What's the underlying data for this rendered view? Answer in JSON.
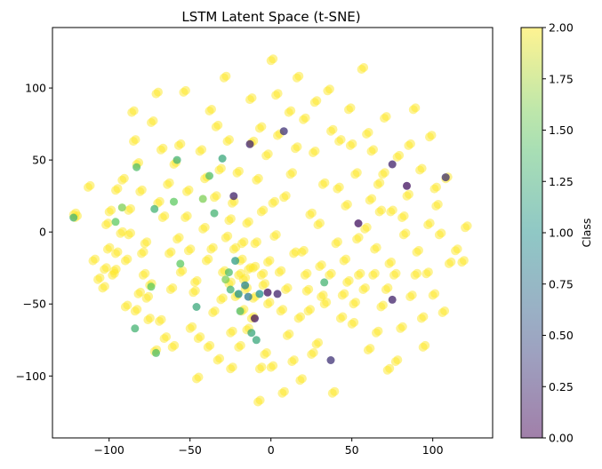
{
  "chart_data": {
    "type": "scatter",
    "title": "LSTM Latent Space (t-SNE)",
    "xlabel": "",
    "ylabel": "",
    "xlim": [
      -135,
      137
    ],
    "ylim": [
      -143,
      142
    ],
    "xticks": [
      -100,
      -50,
      0,
      50,
      100
    ],
    "yticks": [
      -100,
      -50,
      0,
      50,
      100
    ],
    "grid": false,
    "marker_alpha": 0.5,
    "colormap": "viridis",
    "colorbar": {
      "label": "Class",
      "range": [
        0,
        2
      ],
      "ticks": [
        "0.00",
        "0.25",
        "0.50",
        "0.75",
        "1.00",
        "1.25",
        "1.50",
        "1.75",
        "2.00"
      ],
      "stops": [
        "#440154",
        "#3b528b",
        "#21918c",
        "#5ec962",
        "#fde725"
      ]
    },
    "points_class_2": [
      [
        -122,
        12
      ],
      [
        -121,
        10
      ],
      [
        -113,
        31
      ],
      [
        -102,
        5
      ],
      [
        -101,
        -12
      ],
      [
        -100,
        14
      ],
      [
        -98,
        -30
      ],
      [
        -97,
        -27
      ],
      [
        -96,
        -15
      ],
      [
        -93,
        -1
      ],
      [
        -90,
        -20
      ],
      [
        -88,
        -2
      ],
      [
        -86,
        83
      ],
      [
        -85,
        63
      ],
      [
        -83,
        47
      ],
      [
        -82,
        -43
      ],
      [
        -80,
        -15
      ],
      [
        -78,
        -8
      ],
      [
        -76,
        -61
      ],
      [
        -75,
        -37
      ],
      [
        -72,
        -83
      ],
      [
        -71,
        96
      ],
      [
        -70,
        20
      ],
      [
        -68,
        57
      ],
      [
        -66,
        -74
      ],
      [
        -64,
        33
      ],
      [
        -62,
        -40
      ],
      [
        -60,
        47
      ],
      [
        -58,
        -5
      ],
      [
        -56,
        -28
      ],
      [
        -54,
        97
      ],
      [
        -52,
        28
      ],
      [
        -50,
        -67
      ],
      [
        -48,
        -42
      ],
      [
        -46,
        -102
      ],
      [
        -44,
        56
      ],
      [
        -42,
        2
      ],
      [
        -40,
        -20
      ],
      [
        -38,
        84
      ],
      [
        -36,
        -56
      ],
      [
        -35,
        24
      ],
      [
        -33,
        -89
      ],
      [
        -32,
        43
      ],
      [
        -30,
        -28
      ],
      [
        -29,
        107
      ],
      [
        -28,
        -4
      ],
      [
        -27,
        63
      ],
      [
        -26,
        -36
      ],
      [
        -25,
        -70
      ],
      [
        -24,
        20
      ],
      [
        -23,
        -12
      ],
      [
        -22,
        -45
      ],
      [
        -21,
        41
      ],
      [
        -20,
        -30
      ],
      [
        -19,
        -20
      ],
      [
        -18,
        -55
      ],
      [
        -17,
        -33
      ],
      [
        -16,
        -40
      ],
      [
        -15,
        6
      ],
      [
        -14,
        -26
      ],
      [
        -13,
        92
      ],
      [
        -12,
        -60
      ],
      [
        -11,
        -46
      ],
      [
        -10,
        -8
      ],
      [
        -9,
        36
      ],
      [
        -8,
        -118
      ],
      [
        -7,
        72
      ],
      [
        -6,
        14
      ],
      [
        -5,
        -37
      ],
      [
        -4,
        -85
      ],
      [
        -3,
        53
      ],
      [
        -2,
        -21
      ],
      [
        0,
        119
      ],
      [
        0,
        -94
      ],
      [
        2,
        -3
      ],
      [
        4,
        67
      ],
      [
        6,
        -55
      ],
      [
        8,
        24
      ],
      [
        10,
        -72
      ],
      [
        12,
        40
      ],
      [
        14,
        -15
      ],
      [
        16,
        107
      ],
      [
        18,
        -103
      ],
      [
        20,
        78
      ],
      [
        22,
        -41
      ],
      [
        24,
        12
      ],
      [
        26,
        55
      ],
      [
        28,
        -78
      ],
      [
        30,
        -24
      ],
      [
        32,
        33
      ],
      [
        35,
        98
      ],
      [
        38,
        -112
      ],
      [
        40,
        -8
      ],
      [
        42,
        63
      ],
      [
        44,
        -44
      ],
      [
        46,
        18
      ],
      [
        48,
        85
      ],
      [
        50,
        -64
      ],
      [
        52,
        40
      ],
      [
        54,
        -30
      ],
      [
        56,
        113
      ],
      [
        58,
        2
      ],
      [
        60,
        -82
      ],
      [
        62,
        56
      ],
      [
        64,
        -12
      ],
      [
        66,
        33
      ],
      [
        68,
        -52
      ],
      [
        70,
        79
      ],
      [
        72,
        -96
      ],
      [
        74,
        14
      ],
      [
        76,
        -30
      ],
      [
        78,
        52
      ],
      [
        80,
        -67
      ],
      [
        82,
        -2
      ],
      [
        84,
        25
      ],
      [
        86,
        -45
      ],
      [
        88,
        85
      ],
      [
        90,
        -14
      ],
      [
        92,
        43
      ],
      [
        94,
        -80
      ],
      [
        96,
        -29
      ],
      [
        98,
        66
      ],
      [
        100,
        -44
      ],
      [
        102,
        18
      ],
      [
        104,
        -2
      ],
      [
        106,
        -56
      ],
      [
        108,
        37
      ],
      [
        110,
        -22
      ],
      [
        114,
        -13
      ],
      [
        118,
        -21
      ],
      [
        120,
        3
      ],
      [
        -110,
        -20
      ],
      [
        -107,
        -33
      ],
      [
        -104,
        -39
      ],
      [
        -92,
        36
      ],
      [
        -88,
        15
      ],
      [
        -84,
        -55
      ],
      [
        -79,
        -30
      ],
      [
        -74,
        76
      ],
      [
        -69,
        -62
      ],
      [
        -63,
        -15
      ],
      [
        -57,
        60
      ],
      [
        -51,
        -13
      ],
      [
        -45,
        -74
      ],
      [
        -41,
        37
      ],
      [
        -37,
        -12
      ],
      [
        -34,
        73
      ],
      [
        -31,
        -47
      ],
      [
        -26,
        8
      ],
      [
        -18,
        -8
      ],
      [
        -15,
        -68
      ],
      [
        -11,
        -25
      ],
      [
        -6,
        -30
      ],
      [
        -2,
        -50
      ],
      [
        1,
        20
      ],
      [
        5,
        -28
      ],
      [
        9,
        -40
      ],
      [
        13,
        -90
      ],
      [
        17,
        -60
      ],
      [
        21,
        -30
      ],
      [
        25,
        -85
      ],
      [
        29,
        5
      ],
      [
        33,
        -50
      ],
      [
        37,
        70
      ],
      [
        41,
        30
      ],
      [
        45,
        -20
      ],
      [
        49,
        60
      ],
      [
        53,
        -5
      ],
      [
        57,
        -40
      ],
      [
        61,
        22
      ],
      [
        65,
        -70
      ],
      [
        69,
        40
      ],
      [
        73,
        -22
      ],
      [
        77,
        -90
      ],
      [
        81,
        10
      ],
      [
        85,
        60
      ],
      [
        89,
        -30
      ],
      [
        93,
        -60
      ],
      [
        97,
        5
      ],
      [
        101,
        30
      ],
      [
        -103,
        -26
      ],
      [
        -96,
        29
      ],
      [
        -90,
        -52
      ],
      [
        -81,
        28
      ],
      [
        -77,
        -46
      ],
      [
        -67,
        10
      ],
      [
        -61,
        -80
      ],
      [
        -53,
        10
      ],
      [
        -47,
        -35
      ],
      [
        -39,
        -80
      ],
      [
        -25,
        -95
      ],
      [
        -20,
        -80
      ],
      [
        -12,
        62
      ],
      [
        -7,
        -95
      ],
      [
        3,
        95
      ],
      [
        7,
        -112
      ],
      [
        11,
        83
      ],
      [
        15,
        58
      ],
      [
        19,
        -14
      ],
      [
        23,
        -55
      ],
      [
        27,
        90
      ],
      [
        31,
        -45
      ],
      [
        36,
        -30
      ],
      [
        43,
        -60
      ],
      [
        47,
        -35
      ],
      [
        51,
        -50
      ],
      [
        59,
        68
      ],
      [
        63,
        -30
      ],
      [
        67,
        14
      ],
      [
        71,
        -40
      ]
    ],
    "points_other": [
      {
        "x": -122,
        "y": 10,
        "class": 1.3
      },
      {
        "x": -96,
        "y": 7,
        "class": 1.5
      },
      {
        "x": -92,
        "y": 17,
        "class": 1.6
      },
      {
        "x": -83,
        "y": 45,
        "class": 1.4
      },
      {
        "x": -72,
        "y": 16,
        "class": 1.3
      },
      {
        "x": -74,
        "y": -38,
        "class": 1.5
      },
      {
        "x": -84,
        "y": -67,
        "class": 1.3
      },
      {
        "x": -71,
        "y": -84,
        "class": 1.4
      },
      {
        "x": -58,
        "y": 50,
        "class": 1.3
      },
      {
        "x": -60,
        "y": 21,
        "class": 1.5
      },
      {
        "x": -56,
        "y": -22,
        "class": 1.5
      },
      {
        "x": -46,
        "y": -52,
        "class": 1.2
      },
      {
        "x": -42,
        "y": 23,
        "class": 1.6
      },
      {
        "x": -38,
        "y": 39,
        "class": 1.4
      },
      {
        "x": -35,
        "y": 13,
        "class": 1.3
      },
      {
        "x": -30,
        "y": 51,
        "class": 1.2
      },
      {
        "x": -28,
        "y": -33,
        "class": 1.6
      },
      {
        "x": -23,
        "y": 25,
        "class": 0.2
      },
      {
        "x": -25,
        "y": -40,
        "class": 1.3
      },
      {
        "x": -22,
        "y": -20,
        "class": 1.1
      },
      {
        "x": -20,
        "y": -43,
        "class": 1.0
      },
      {
        "x": -14,
        "y": -45,
        "class": 0.8
      },
      {
        "x": -10,
        "y": -60,
        "class": 0.1
      },
      {
        "x": -12,
        "y": -70,
        "class": 1.2
      },
      {
        "x": -9,
        "y": -75,
        "class": 1.2
      },
      {
        "x": -7,
        "y": -43,
        "class": 1.0
      },
      {
        "x": -2,
        "y": -42,
        "class": 0.1
      },
      {
        "x": -13,
        "y": 61,
        "class": 0.2
      },
      {
        "x": 4,
        "y": -43,
        "class": 0.2
      },
      {
        "x": 8,
        "y": 70,
        "class": 0.3
      },
      {
        "x": 33,
        "y": -35,
        "class": 1.3
      },
      {
        "x": 37,
        "y": -89,
        "class": 0.3
      },
      {
        "x": 54,
        "y": 6,
        "class": 0.1
      },
      {
        "x": 75,
        "y": -47,
        "class": 0.2
      },
      {
        "x": 84,
        "y": 32,
        "class": 0.1
      },
      {
        "x": 75,
        "y": 47,
        "class": 0.2
      },
      {
        "x": 108,
        "y": 38,
        "class": 0.3
      },
      {
        "x": -26,
        "y": -28,
        "class": 1.4
      },
      {
        "x": -16,
        "y": -37,
        "class": 0.9
      },
      {
        "x": -19,
        "y": -55,
        "class": 1.4
      }
    ]
  }
}
